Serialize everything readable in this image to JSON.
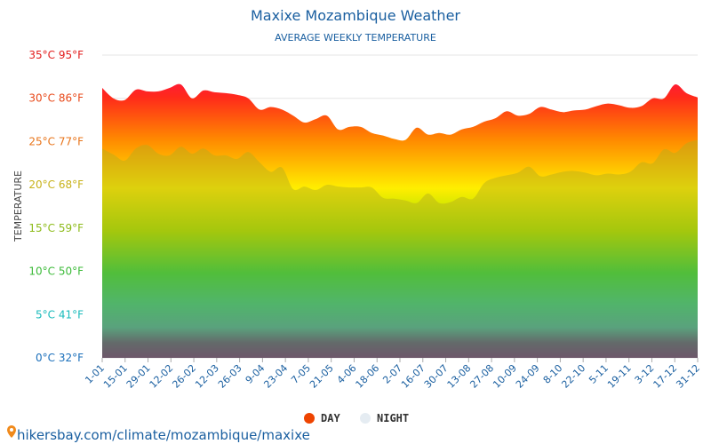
{
  "chart_data": {
    "type": "area",
    "title": "Maxixe Mozambique Weather",
    "subtitle": "AVERAGE WEEKLY TEMPERATURE",
    "ylabel": "TEMPERATURE",
    "ylim": [
      0,
      35
    ],
    "y_ticks": [
      {
        "value": 35,
        "label": "35°C 95°F",
        "color": "#e21d1d"
      },
      {
        "value": 30,
        "label": "30°C 86°F",
        "color": "#e8491a"
      },
      {
        "value": 25,
        "label": "25°C 77°F",
        "color": "#e8741a"
      },
      {
        "value": 20,
        "label": "20°C 68°F",
        "color": "#c8b21a"
      },
      {
        "value": 15,
        "label": "15°C 59°F",
        "color": "#8dbb1a"
      },
      {
        "value": 10,
        "label": "10°C 50°F",
        "color": "#3dbb3a"
      },
      {
        "value": 5,
        "label": "5°C 41°F",
        "color": "#1abbbb"
      },
      {
        "value": 0,
        "label": "0°C 32°F",
        "color": "#1a6fbb"
      }
    ],
    "x_tick_labels": [
      "1-01",
      "15-01",
      "29-01",
      "12-02",
      "26-02",
      "12-03",
      "26-03",
      "9-04",
      "23-04",
      "7-05",
      "21-05",
      "4-06",
      "18-06",
      "2-07",
      "16-07",
      "30-07",
      "13-08",
      "27-08",
      "10-09",
      "24-09",
      "8-10",
      "22-10",
      "5-11",
      "19-11",
      "3-12",
      "17-12",
      "31-12"
    ],
    "series": [
      {
        "name": "DAY",
        "color": "#ee4400",
        "values": [
          31.2,
          30.0,
          29.8,
          31.0,
          30.8,
          30.8,
          31.2,
          31.6,
          30.0,
          30.9,
          30.7,
          30.6,
          30.4,
          30.0,
          28.7,
          29.0,
          28.7,
          28.0,
          27.2,
          27.6,
          28.0,
          26.4,
          26.7,
          26.7,
          26.0,
          25.7,
          25.3,
          25.2,
          26.6,
          25.8,
          26.0,
          25.8,
          26.4,
          26.7,
          27.3,
          27.7,
          28.5,
          28.0,
          28.2,
          29.0,
          28.7,
          28.4,
          28.6,
          28.7,
          29.1,
          29.4,
          29.2,
          28.9,
          29.1,
          30.0,
          30.0,
          31.6,
          30.6,
          30.1
        ]
      },
      {
        "name": "NIGHT",
        "color": "#e5ecf2",
        "values": [
          24.2,
          23.5,
          22.8,
          24.2,
          24.6,
          23.6,
          23.4,
          24.4,
          23.6,
          24.2,
          23.4,
          23.4,
          23.0,
          23.8,
          22.6,
          21.5,
          22.0,
          19.5,
          19.8,
          19.4,
          20.0,
          19.8,
          19.7,
          19.7,
          19.7,
          18.5,
          18.4,
          18.2,
          17.9,
          19.0,
          17.9,
          18.0,
          18.6,
          18.4,
          20.2,
          20.8,
          21.1,
          21.4,
          22.1,
          21.0,
          21.2,
          21.5,
          21.6,
          21.4,
          21.1,
          21.3,
          21.2,
          21.5,
          22.6,
          22.5,
          24.1,
          23.7,
          24.8,
          25.2
        ]
      }
    ],
    "legend_position": "bottom-center"
  },
  "footer": {
    "text": "hikersbay.com/climate/mozambique/maxixe"
  }
}
